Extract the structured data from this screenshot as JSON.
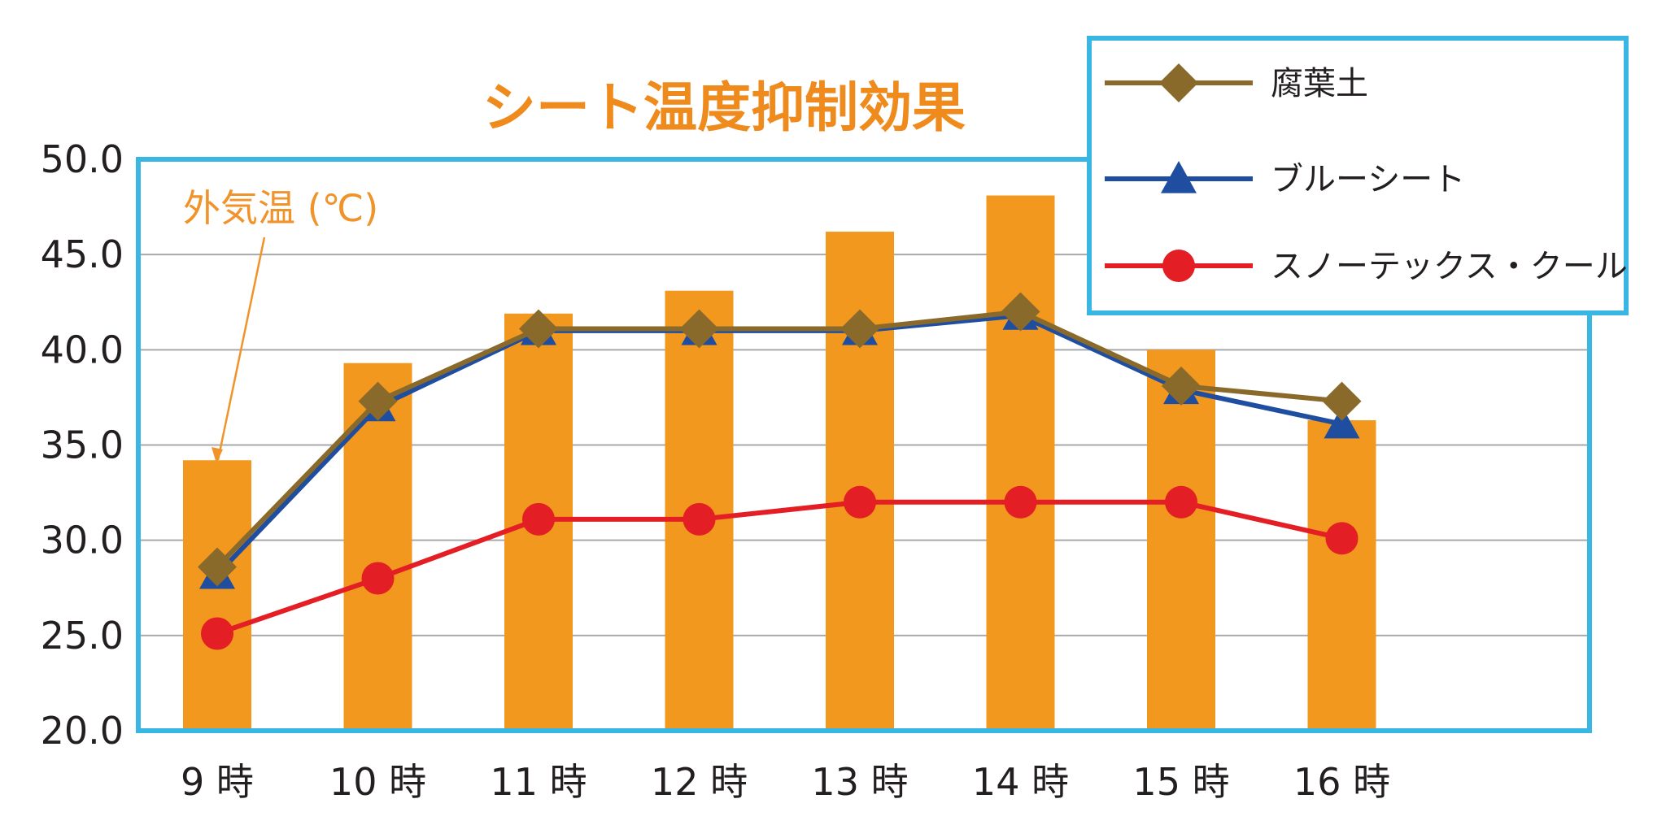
{
  "chart_data": {
    "type": "bar",
    "title": "シート温度抑制効果",
    "annotation": "外気温 (℃)",
    "categories": [
      "9 時",
      "10 時",
      "11 時",
      "12 時",
      "13 時",
      "14 時",
      "15 時",
      "16 時"
    ],
    "ylim": [
      20,
      50
    ],
    "yticks": [
      "20.0",
      "25.0",
      "30.0",
      "35.0",
      "40.0",
      "45.0",
      "50.0"
    ],
    "grid": true,
    "legend_position": "top-right",
    "bars": {
      "values": [
        34.2,
        39.3,
        41.9,
        43.1,
        46.2,
        48.1,
        40.0,
        36.3
      ],
      "color": "#f2981e"
    },
    "series": [
      {
        "name": "腐葉土",
        "values": [
          28.6,
          37.3,
          41.1,
          41.1,
          41.1,
          42.0,
          38.1,
          37.3
        ],
        "color": "#8a6a2a",
        "marker": "diamond"
      },
      {
        "name": "ブルーシート",
        "values": [
          28.2,
          37.0,
          41.0,
          41.0,
          41.0,
          41.8,
          37.9,
          36.1
        ],
        "color": "#1f4ea1",
        "marker": "triangle"
      },
      {
        "name": "スノーテックス・クール",
        "values": [
          25.1,
          28.0,
          31.1,
          31.1,
          32.0,
          32.0,
          32.0,
          30.1
        ],
        "color": "#e31e24",
        "marker": "circle"
      }
    ],
    "frame_color": "#3ab6e2"
  }
}
